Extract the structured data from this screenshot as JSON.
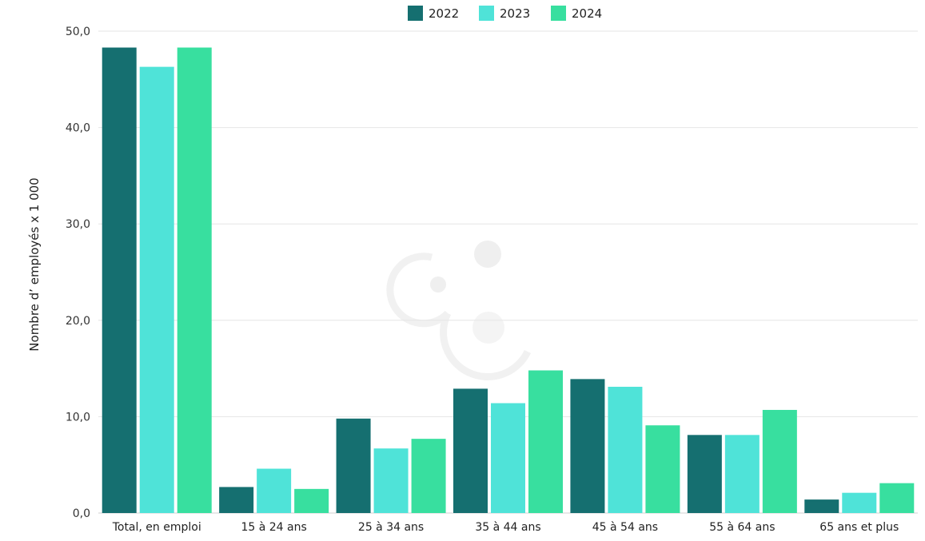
{
  "chart_data": {
    "type": "bar",
    "title": "",
    "xlabel": "",
    "ylabel": "Nombre d’ employés x 1 000",
    "ylim": [
      0,
      50
    ],
    "yticks": [
      "0,0",
      "10,0",
      "20,0",
      "30,0",
      "40,0",
      "50,0"
    ],
    "grid": true,
    "legend_position": "top-center",
    "categories": [
      "Total, en emploi",
      "15 à 24 ans",
      "25 à 34 ans",
      "35 à 44 ans",
      "45 à 54 ans",
      "55 à 64 ans",
      "65 ans et plus"
    ],
    "series": [
      {
        "name": "2022",
        "color": "#156f70",
        "values": [
          48.3,
          2.7,
          9.8,
          12.9,
          13.9,
          8.1,
          1.4
        ]
      },
      {
        "name": "2023",
        "color": "#4fe3d8",
        "values": [
          46.3,
          4.6,
          6.7,
          11.4,
          13.1,
          8.1,
          2.1
        ]
      },
      {
        "name": "2024",
        "color": "#38df9f",
        "values": [
          48.3,
          2.5,
          7.7,
          14.8,
          9.1,
          10.7,
          3.1
        ]
      }
    ]
  },
  "watermark": {
    "icon": "logo-watermark-icon",
    "color": "#e9e9e9"
  }
}
